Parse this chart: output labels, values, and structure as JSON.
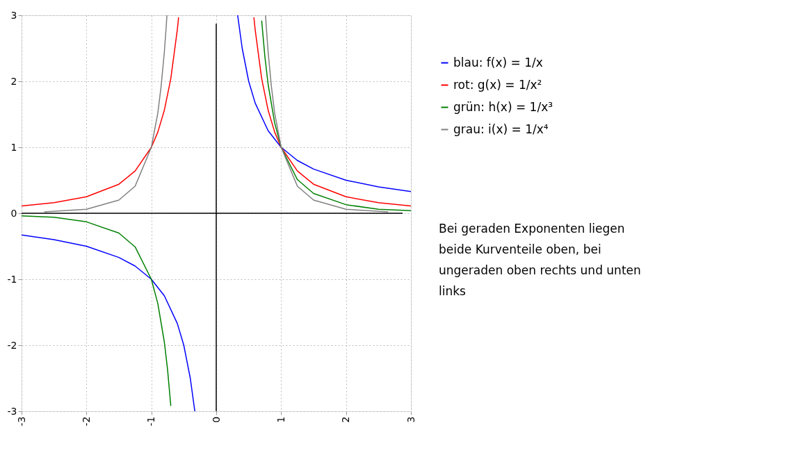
{
  "chart_data": {
    "type": "line",
    "xlim": [
      -3,
      3
    ],
    "ylim": [
      -3,
      3
    ],
    "xticks": [
      -3,
      -2,
      -1,
      0,
      1,
      2,
      3
    ],
    "yticks": [
      -3,
      -2,
      -1,
      0,
      1,
      2,
      3
    ],
    "grid": true,
    "legend": "right",
    "line_style": "solid",
    "series": [
      {
        "name": "blau: f(x) = 1/x",
        "color": "#0000ff",
        "x": [
          -3,
          -2.5,
          -2,
          -1.5,
          -1.25,
          -1,
          -0.8,
          -0.6,
          -0.5,
          -0.4,
          -0.33,
          0,
          0.33,
          0.4,
          0.5,
          0.6,
          0.8,
          1,
          1.25,
          1.5,
          2,
          2.5,
          3
        ],
        "values": [
          -0.33,
          -0.4,
          -0.5,
          -0.67,
          -0.8,
          -1,
          -1.25,
          -1.67,
          -2,
          -2.5,
          -3,
          null,
          3,
          2.5,
          2,
          1.67,
          1.25,
          1,
          0.8,
          0.67,
          0.5,
          0.4,
          0.33
        ]
      },
      {
        "name": "rot: g(x) = 1/x²",
        "color": "#ff0000",
        "x": [
          -3,
          -2.5,
          -2,
          -1.5,
          -1.25,
          -1,
          -0.9,
          -0.8,
          -0.7,
          -0.6,
          -0.58,
          0,
          0.58,
          0.6,
          0.7,
          0.8,
          0.9,
          1,
          1.25,
          1.5,
          2,
          2.5,
          3
        ],
        "values": [
          0.11,
          0.16,
          0.25,
          0.44,
          0.64,
          1,
          1.23,
          1.56,
          2.04,
          2.78,
          2.97,
          null,
          2.97,
          2.78,
          2.04,
          1.56,
          1.23,
          1,
          0.64,
          0.44,
          0.25,
          0.16,
          0.11
        ]
      },
      {
        "name": "grün: h(x) = 1/x³",
        "color": "#008000",
        "x": [
          -3,
          -2.5,
          -2,
          -1.5,
          -1.25,
          -1,
          -0.9,
          -0.8,
          -0.75,
          -0.7,
          0,
          0.7,
          0.75,
          0.8,
          0.9,
          1,
          1.25,
          1.5,
          2,
          2.5,
          3
        ],
        "values": [
          -0.04,
          -0.06,
          -0.13,
          -0.3,
          -0.51,
          -1,
          -1.37,
          -1.95,
          -2.37,
          -2.92,
          null,
          2.92,
          2.37,
          1.95,
          1.37,
          1,
          0.51,
          0.3,
          0.13,
          0.06,
          0.04
        ]
      },
      {
        "name": "grau: i(x) = 1/x⁴",
        "color": "#808080",
        "x": [
          -2.65,
          -2,
          -1.5,
          -1.25,
          -1,
          -0.9,
          -0.85,
          -0.8,
          -0.77,
          -0.76,
          0,
          0.76,
          0.77,
          0.8,
          0.85,
          0.9,
          1,
          1.25,
          1.5,
          2,
          2.65
        ],
        "values": [
          0.02,
          0.06,
          0.2,
          0.41,
          1,
          1.52,
          1.92,
          2.44,
          2.84,
          3,
          null,
          3,
          2.84,
          2.44,
          1.92,
          1.52,
          1,
          0.41,
          0.2,
          0.06,
          0.02
        ]
      }
    ],
    "annotations": [
      "Bei geraden Exponenten liegen beide Kurventeile oben, bei ungeraden oben rechts und unten links"
    ]
  }
}
